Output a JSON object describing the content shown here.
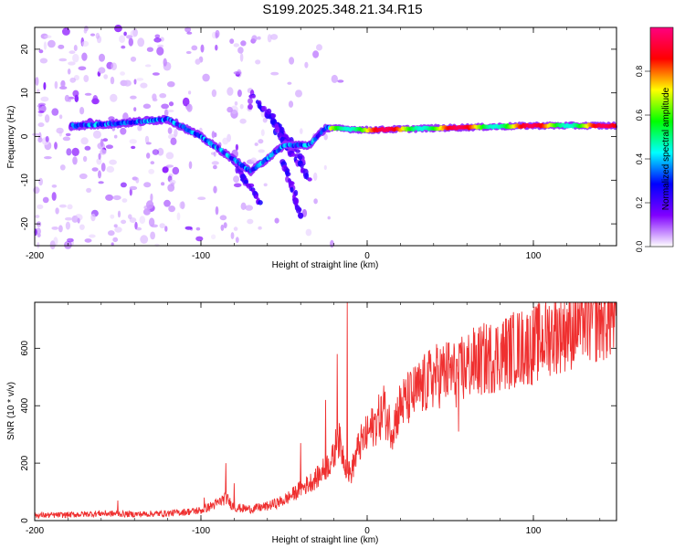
{
  "title": "S199.2025.348.21.34.R15",
  "chart_data": [
    {
      "type": "heatmap",
      "title": "S199.2025.348.21.34.R15",
      "xlabel": "Height of straight line (km)",
      "ylabel": "Frequency (Hz)",
      "xlim": [
        -200,
        150
      ],
      "ylim": [
        -25,
        25
      ],
      "xticks": [
        -200,
        -100,
        0,
        100
      ],
      "yticks": [
        -20,
        -10,
        0,
        10,
        20
      ],
      "colorbar": {
        "label": "Normalized spectral amplitude",
        "range": [
          0,
          1
        ],
        "ticks": [
          "0.0",
          "0.2",
          "0.4",
          "0.6",
          "0.8"
        ],
        "colors": [
          "#ffffff",
          "#8000ff",
          "#0000ff",
          "#00ffff",
          "#00ff00",
          "#ffff00",
          "#ff0000",
          "#ff0080"
        ]
      },
      "dominant_track": [
        {
          "x": -175,
          "y": 2.5
        },
        {
          "x": -150,
          "y": 3
        },
        {
          "x": -120,
          "y": 4
        },
        {
          "x": -100,
          "y": 0
        },
        {
          "x": -85,
          "y": -4
        },
        {
          "x": -70,
          "y": -8
        },
        {
          "x": -50,
          "y": -2
        },
        {
          "x": -35,
          "y": -2
        },
        {
          "x": -25,
          "y": 2
        },
        {
          "x": 0,
          "y": 1.5
        },
        {
          "x": 50,
          "y": 2
        },
        {
          "x": 100,
          "y": 2.5
        },
        {
          "x": 150,
          "y": 2.5
        }
      ]
    },
    {
      "type": "line",
      "xlabel": "Height of straight line (km)",
      "ylabel": "SNR (10 * v/v)",
      "xlim": [
        -200,
        150
      ],
      "ylim": [
        0,
        760
      ],
      "xticks": [
        -200,
        -100,
        0,
        100
      ],
      "yticks": [
        0,
        200,
        400,
        600
      ],
      "series": [
        {
          "name": "SNR",
          "color": "#ef3030",
          "x": [
            -200,
            -180,
            -160,
            -140,
            -120,
            -100,
            -90,
            -85,
            -80,
            -70,
            -60,
            -50,
            -40,
            -30,
            -20,
            -18,
            -15,
            -12,
            -10,
            -5,
            0,
            5,
            10,
            15,
            20,
            30,
            40,
            50,
            55,
            60,
            70,
            80,
            90,
            100,
            110,
            120,
            130,
            140,
            150
          ],
          "y": [
            18,
            20,
            25,
            22,
            25,
            35,
            60,
            80,
            45,
            40,
            50,
            70,
            110,
            150,
            220,
            300,
            240,
            180,
            160,
            260,
            300,
            340,
            380,
            320,
            400,
            450,
            500,
            520,
            500,
            540,
            560,
            580,
            600,
            610,
            650,
            670,
            690,
            710,
            720
          ]
        }
      ],
      "spikes": [
        {
          "x": -150,
          "y": 70
        },
        {
          "x": -98,
          "y": 80
        },
        {
          "x": -85,
          "y": 200
        },
        {
          "x": -80,
          "y": 130
        },
        {
          "x": -40,
          "y": 270
        },
        {
          "x": -25,
          "y": 420
        },
        {
          "x": -18,
          "y": 580
        },
        {
          "x": -12,
          "y": 760
        },
        {
          "x": 10,
          "y": 470
        },
        {
          "x": 55,
          "y": 310
        },
        {
          "x": 57,
          "y": 640
        },
        {
          "x": 102,
          "y": 650
        },
        {
          "x": 130,
          "y": 740
        }
      ]
    }
  ]
}
